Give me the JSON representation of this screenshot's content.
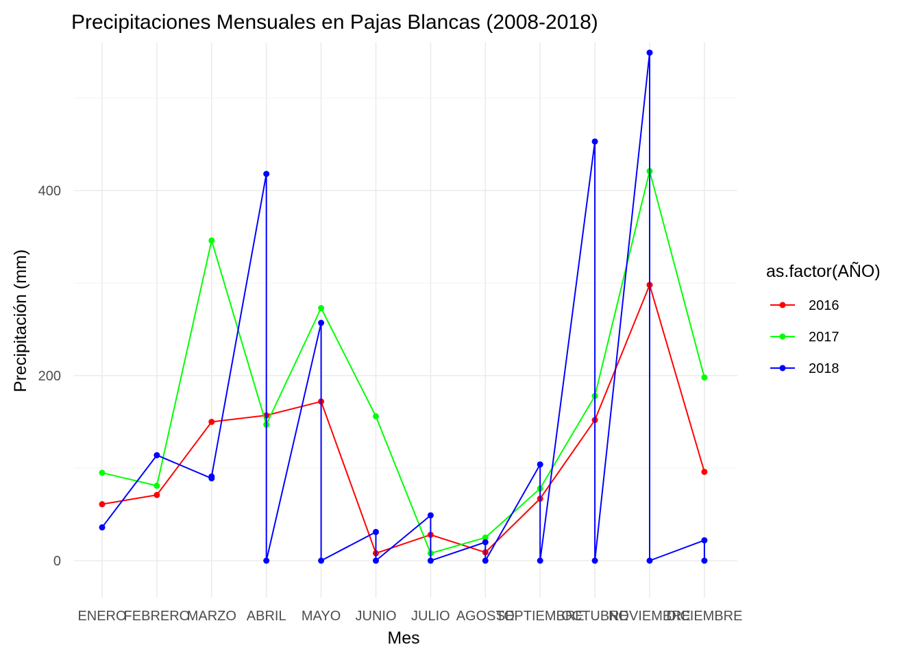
{
  "chart_data": {
    "type": "line",
    "title": "Precipitaciones Mensuales en Pajas Blancas (2008-2018)",
    "xlabel": "Mes",
    "ylabel": "Precipitación (mm)",
    "categories": [
      "ENERO",
      "FEBRERO",
      "MARZO",
      "ABRIL",
      "MAYO",
      "JUNIO",
      "JULIO",
      "AGOSTO",
      "SEPTIEMBRE",
      "OCTUBRE",
      "NOVIEMBRE",
      "DICIEMBRE"
    ],
    "ylim": [
      -40,
      560
    ],
    "yticks": [
      0,
      200,
      400
    ],
    "grid": true,
    "legend": {
      "title": "as.factor(AÑO)",
      "position": "right"
    },
    "series": [
      {
        "name": "2016",
        "color": "#ff0000",
        "points": [
          {
            "month": "ENERO",
            "y": 61
          },
          {
            "month": "FEBRERO",
            "y": 71
          },
          {
            "month": "MARZO",
            "y": 150
          },
          {
            "month": "ABRIL",
            "y": 157
          },
          {
            "month": "MAYO",
            "y": 172
          },
          {
            "month": "JUNIO",
            "y": 8
          },
          {
            "month": "JULIO",
            "y": 28
          },
          {
            "month": "AGOSTO",
            "y": 9
          },
          {
            "month": "SEPTIEMBRE",
            "y": 67
          },
          {
            "month": "OCTUBRE",
            "y": 152
          },
          {
            "month": "NOVIEMBRE",
            "y": 298
          },
          {
            "month": "DICIEMBRE",
            "y": 96
          }
        ]
      },
      {
        "name": "2017",
        "color": "#00ff00",
        "points": [
          {
            "month": "ENERO",
            "y": 95
          },
          {
            "month": "FEBRERO",
            "y": 81
          },
          {
            "month": "MARZO",
            "y": 346
          },
          {
            "month": "ABRIL",
            "y": 147
          },
          {
            "month": "MAYO",
            "y": 273
          },
          {
            "month": "JUNIO",
            "y": 156
          },
          {
            "month": "JULIO",
            "y": 8
          },
          {
            "month": "AGOSTO",
            "y": 25
          },
          {
            "month": "SEPTIEMBRE",
            "y": 78
          },
          {
            "month": "OCTUBRE",
            "y": 178
          },
          {
            "month": "NOVIEMBRE",
            "y": 421
          },
          {
            "month": "DICIEMBRE",
            "y": 198
          }
        ]
      },
      {
        "name": "2018",
        "color": "#0000ff",
        "points": [
          {
            "month": "ENERO",
            "y": 36
          },
          {
            "month": "FEBRERO",
            "y": 114
          },
          {
            "month": "MARZO",
            "y": 89
          },
          {
            "month": "MARZO",
            "y": 91
          },
          {
            "month": "ABRIL",
            "y": 418
          },
          {
            "month": "ABRIL",
            "y": 0
          },
          {
            "month": "MAYO",
            "y": 257
          },
          {
            "month": "MAYO",
            "y": 0
          },
          {
            "month": "JUNIO",
            "y": 31
          },
          {
            "month": "JUNIO",
            "y": 0
          },
          {
            "month": "JULIO",
            "y": 49
          },
          {
            "month": "JULIO",
            "y": 0
          },
          {
            "month": "AGOSTO",
            "y": 20
          },
          {
            "month": "AGOSTO",
            "y": 0
          },
          {
            "month": "SEPTIEMBRE",
            "y": 104
          },
          {
            "month": "SEPTIEMBRE",
            "y": 0
          },
          {
            "month": "OCTUBRE",
            "y": 453
          },
          {
            "month": "OCTUBRE",
            "y": 0
          },
          {
            "month": "NOVIEMBRE",
            "y": 549
          },
          {
            "month": "NOVIEMBRE",
            "y": 0
          },
          {
            "month": "DICIEMBRE",
            "y": 22
          },
          {
            "month": "DICIEMBRE",
            "y": 0
          }
        ]
      }
    ]
  }
}
